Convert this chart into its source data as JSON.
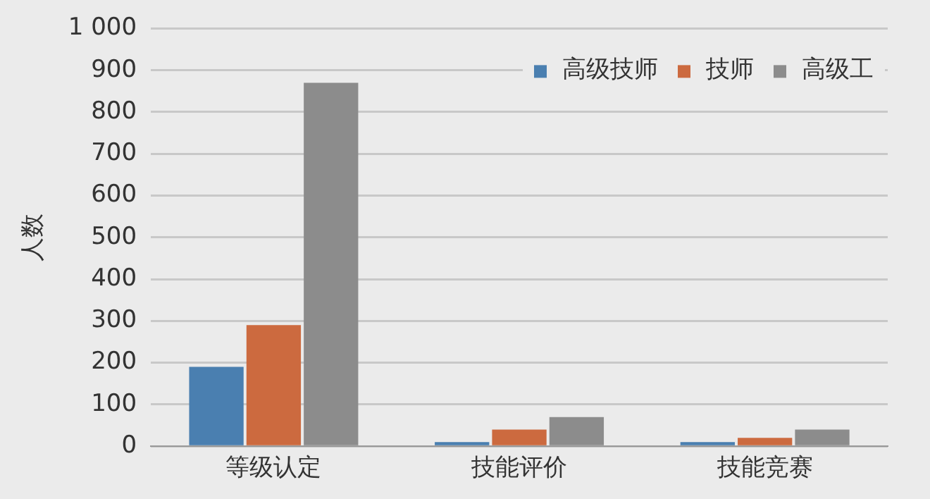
{
  "chart_data": {
    "type": "bar",
    "ylabel": "人数",
    "categories": [
      "等级认定",
      "技能评价",
      "技能竞赛"
    ],
    "series": [
      {
        "name": "高级技师",
        "color": "#4a7fb0",
        "values": [
          190,
          10,
          10
        ]
      },
      {
        "name": "技师",
        "color": "#cc6a3f",
        "values": [
          290,
          40,
          20
        ]
      },
      {
        "name": "高级工",
        "color": "#8c8c8c",
        "values": [
          870,
          70,
          40
        ]
      }
    ],
    "ylim": [
      0,
      1000
    ],
    "yticks": [
      0,
      100,
      200,
      300,
      400,
      500,
      600,
      700,
      800,
      900,
      {
        "value": 1000,
        "label": "1 000"
      }
    ],
    "grid": "y",
    "legend": "top right"
  }
}
